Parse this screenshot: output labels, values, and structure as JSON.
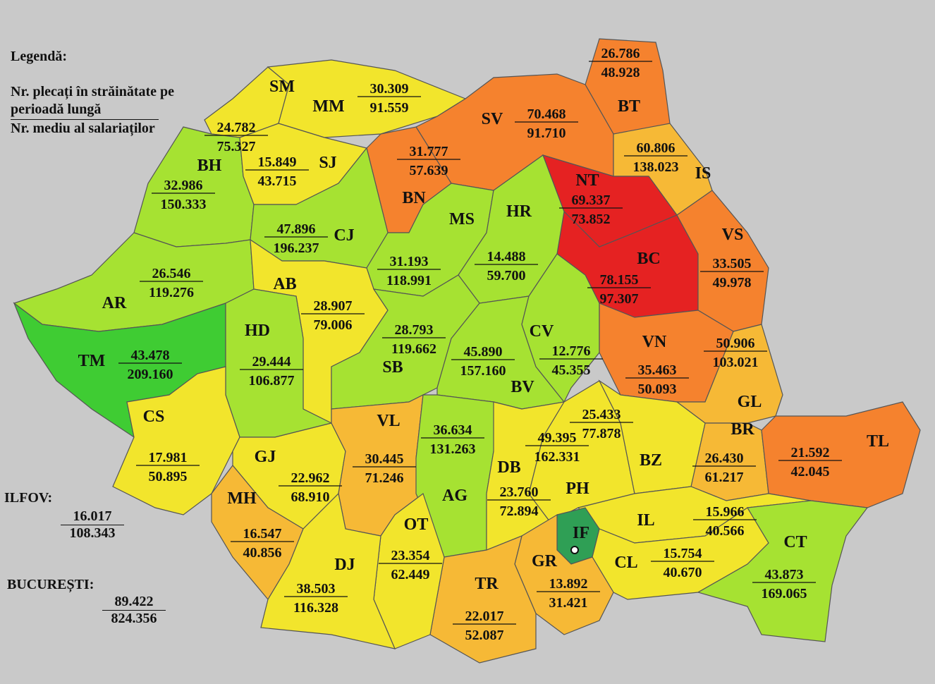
{
  "legend": {
    "title": "Legendă:",
    "numerator_line1": "Nr. plecați în străinătate pe",
    "numerator_line2": "perioadă lungă",
    "denominator": "Nr. mediu al salariaților"
  },
  "colors": {
    "red": "#e52222",
    "orange": "#f5822e",
    "amber": "#f6b936",
    "yellow": "#f2e52c",
    "light_green": "#a6e232",
    "green": "#3fcc33",
    "dark_green": "#2f9f55",
    "outside": "#c9c9c9"
  },
  "side_entries": [
    {
      "label": "ILFOV:",
      "emigrants": "16.017",
      "employees": "108.343"
    },
    {
      "label": "BUCUREȘTI:",
      "emigrants": "89.422",
      "employees": "824.356"
    }
  ],
  "counties": [
    {
      "code": "SM",
      "emigrants": "24.782",
      "employees": "75.327",
      "color": "yellow"
    },
    {
      "code": "MM",
      "emigrants": "30.309",
      "employees": "91.559",
      "color": "yellow"
    },
    {
      "code": "BT",
      "emigrants": "26.786",
      "employees": "48.928",
      "color": "orange"
    },
    {
      "code": "SV",
      "emigrants": "70.468",
      "employees": "91.710",
      "color": "orange"
    },
    {
      "code": "BN",
      "emigrants": "31.777",
      "employees": "57.639",
      "color": "orange"
    },
    {
      "code": "IS",
      "emigrants": "60.806",
      "employees": "138.023",
      "color": "amber"
    },
    {
      "code": "NT",
      "emigrants": "69.337",
      "employees": "73.852",
      "color": "red"
    },
    {
      "code": "BC",
      "emigrants": "78.155",
      "employees": "97.307",
      "color": "red"
    },
    {
      "code": "VS",
      "emigrants": "33.505",
      "employees": "49.978",
      "color": "orange"
    },
    {
      "code": "BH",
      "emigrants": "32.986",
      "employees": "150.333",
      "color": "light_green"
    },
    {
      "code": "SJ",
      "emigrants": "15.849",
      "employees": "43.715",
      "color": "yellow"
    },
    {
      "code": "CJ",
      "emigrants": "47.896",
      "employees": "196.237",
      "color": "light_green"
    },
    {
      "code": "MS",
      "emigrants": "31.193",
      "employees": "118.991",
      "color": "light_green"
    },
    {
      "code": "HR",
      "emigrants": "14.488",
      "employees": "59.700",
      "color": "light_green"
    },
    {
      "code": "AR",
      "emigrants": "26.546",
      "employees": "119.276",
      "color": "light_green"
    },
    {
      "code": "TM",
      "emigrants": "43.478",
      "employees": "209.160",
      "color": "green"
    },
    {
      "code": "AB",
      "emigrants": "28.907",
      "employees": "79.006",
      "color": "yellow"
    },
    {
      "code": "HD",
      "emigrants": "29.444",
      "employees": "106.877",
      "color": "light_green"
    },
    {
      "code": "SB",
      "emigrants": "28.793",
      "employees": "119.662",
      "color": "light_green"
    },
    {
      "code": "BV",
      "emigrants": "45.890",
      "employees": "157.160",
      "color": "light_green"
    },
    {
      "code": "CV",
      "emigrants": "12.776",
      "employees": "45.355",
      "color": "light_green"
    },
    {
      "code": "VN",
      "emigrants": "35.463",
      "employees": "50.093",
      "color": "orange"
    },
    {
      "code": "GL",
      "emigrants": "50.906",
      "employees": "103.021",
      "color": "amber"
    },
    {
      "code": "BR",
      "emigrants": "26.430",
      "employees": "61.217",
      "color": "amber"
    },
    {
      "code": "TL",
      "emigrants": "21.592",
      "employees": "42.045",
      "color": "orange"
    },
    {
      "code": "CS",
      "emigrants": "17.981",
      "employees": "50.895",
      "color": "yellow"
    },
    {
      "code": "GJ",
      "emigrants": "22.962",
      "employees": "68.910",
      "color": "yellow"
    },
    {
      "code": "MH",
      "emigrants": "16.547",
      "employees": "40.856",
      "color": "amber"
    },
    {
      "code": "VL",
      "emigrants": "30.445",
      "employees": "71.246",
      "color": "amber"
    },
    {
      "code": "AG",
      "emigrants": "36.634",
      "employees": "131.263",
      "color": "light_green"
    },
    {
      "code": "DB",
      "emigrants": "23.760",
      "employees": "72.894",
      "color": "yellow"
    },
    {
      "code": "PH",
      "emigrants": "49.395",
      "employees": "162.331",
      "color": "yellow"
    },
    {
      "code": "BZ",
      "emigrants": "25.433",
      "employees": "77.878",
      "color": "yellow"
    },
    {
      "code": "IL",
      "emigrants": "15.966",
      "employees": "40.566",
      "color": "yellow"
    },
    {
      "code": "IF",
      "color": "dark_green"
    },
    {
      "code": "CL",
      "emigrants": "15.754",
      "employees": "40.670",
      "color": "yellow"
    },
    {
      "code": "CT",
      "emigrants": "43.873",
      "employees": "169.065",
      "color": "light_green"
    },
    {
      "code": "GR",
      "emigrants": "13.892",
      "employees": "31.421",
      "color": "amber"
    },
    {
      "code": "TR",
      "emigrants": "22.017",
      "employees": "52.087",
      "color": "amber"
    },
    {
      "code": "OT",
      "emigrants": "23.354",
      "employees": "62.449",
      "color": "yellow"
    },
    {
      "code": "DJ",
      "emigrants": "38.503",
      "employees": "116.328",
      "color": "yellow"
    }
  ]
}
